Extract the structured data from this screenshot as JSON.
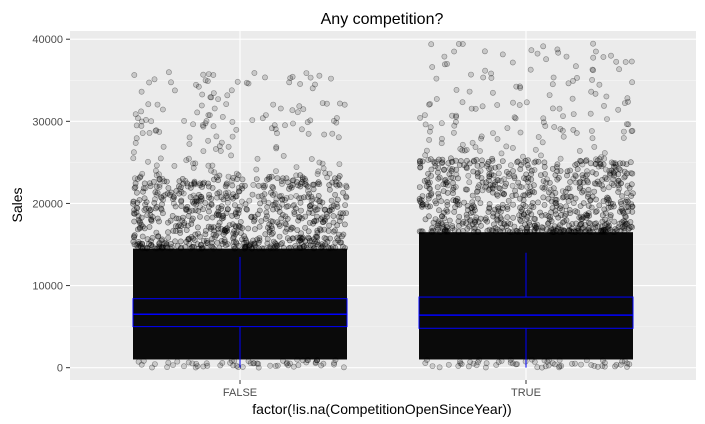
{
  "chart_data": {
    "type": "scatter",
    "subtype": "jittered points with boxplot overlay",
    "title": "Any competition?",
    "xlabel": "factor(!is.na(CompetitionOpenSinceYear))",
    "ylabel": "Sales",
    "categories": [
      "FALSE",
      "TRUE"
    ],
    "ylim": [
      -1500,
      41000
    ],
    "yticks": [
      0,
      10000,
      20000,
      30000,
      40000
    ],
    "ytick_labels": [
      "0",
      "10000",
      "20000",
      "30000",
      "40000"
    ],
    "grid": true,
    "legend": "none",
    "colors": {
      "panel_background": "#ebebeb",
      "grid_major": "#ffffff",
      "grid_minor": "#f5f5f5",
      "points": "#000000",
      "box_outline": "#0000ff"
    },
    "boxplots": [
      {
        "category": "FALSE",
        "q1": 5000,
        "median": 6500,
        "q3": 8400,
        "whisker_low": 0,
        "whisker_high": 13500
      },
      {
        "category": "TRUE",
        "q1": 4800,
        "median": 6400,
        "q3": 8600,
        "whisker_low": 0,
        "whisker_high": 14000
      }
    ],
    "point_cloud": [
      {
        "category": "FALSE",
        "dense_range": [
          1000,
          14500
        ],
        "sparse_max": 36000
      },
      {
        "category": "TRUE",
        "dense_range": [
          1000,
          16500
        ],
        "sparse_max": 39500
      }
    ]
  }
}
